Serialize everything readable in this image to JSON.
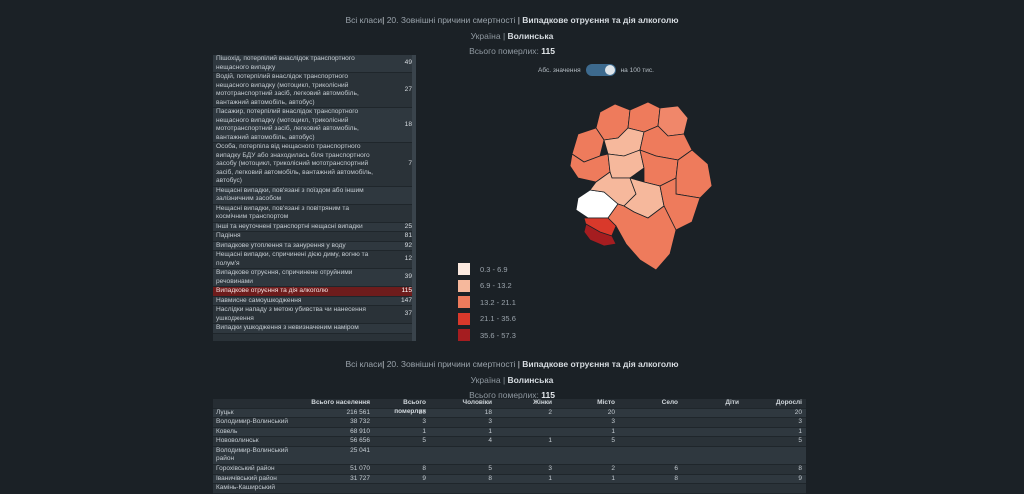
{
  "header": {
    "crumb_all": "Всі класи",
    "crumb_group": "20. Зовнішні причини смертності",
    "crumb_current": "Випадкове отруєння та дія алкоголю",
    "region_parent": "Україна",
    "region_current": "Волинська",
    "total_label": "Всього померлих:",
    "total_value": "115"
  },
  "toggle": {
    "left_label": "Абс. значення",
    "right_label": "на 100 тис.",
    "state": "on"
  },
  "causes": [
    {
      "label": "Пішохід, потерпілий внаслідок транспортного нещасного випадку",
      "value": "49"
    },
    {
      "label": "Водій, потерпілий внаслідок транспортного нещасного випадку (мотоцикл, триколісний мототранспортний засіб, легковий автомобіль, вантажний автомобіль, автобус)",
      "value": "27"
    },
    {
      "label": "Пасажир, потерпілий внаслідок транспортного нещасного випадку (мотоцикл, триколісний мототранспортний засіб, легковий автомобіль, вантажний автомобіль, автобус)",
      "value": "18"
    },
    {
      "label": "Особа, потерпіла від нещасного транспортного випадку БДУ або знаходилась біля транспортного засобу (мотоцикл, триколісний мототранспортний засіб, легковий автомобіль, вантажний автомобіль, автобус)",
      "value": "7"
    },
    {
      "label": "Нещасні випадки, пов'язані з поїздом або іншим залізничним засобом",
      "value": ""
    },
    {
      "label": "Нещасні випадки, пов'язані з повітряним та космічним транспортом",
      "value": ""
    },
    {
      "label": "Інші та неуточнені транспортні нещасні випадки",
      "value": "25"
    },
    {
      "label": "Падіння",
      "value": "81"
    },
    {
      "label": "Випадкове утоплення та занурення у воду",
      "value": "92"
    },
    {
      "label": "Нещасні випадки, спричинені дією диму, вогню та полум'я",
      "value": "12"
    },
    {
      "label": "Випадкове отруєння, спричинене отруйними речовинами",
      "value": "39"
    },
    {
      "label": "Випадкове отруєння та дія алкоголю",
      "value": "115",
      "selected": true
    },
    {
      "label": "Навмисне самоушкодження",
      "value": "147"
    },
    {
      "label": "Наслідки нападу з метою убивства чи нанесення ушкодження",
      "value": "37"
    },
    {
      "label": "Випадки ушкодження з невизначеним наміром",
      "value": ""
    }
  ],
  "legend": [
    {
      "label": "0.3 - 6.9",
      "color": "#fbe9df"
    },
    {
      "label": "6.9 - 13.2",
      "color": "#f6b89c"
    },
    {
      "label": "13.2 - 21.1",
      "color": "#ee7b5c"
    },
    {
      "label": "21.1 - 35.6",
      "color": "#d9392b"
    },
    {
      "label": "35.6 - 57.3",
      "color": "#a51d20"
    }
  ],
  "bottom_header": {
    "crumb_all": "Всі класи",
    "crumb_group": "20. Зовнішні причини смертності",
    "crumb_current": "Випадкове отруєння та дія алкоголю",
    "region_parent": "Україна",
    "region_current": "Волинська",
    "total_label": "Всього померлих:",
    "total_value": "115"
  },
  "table": {
    "columns": [
      "",
      "Всього населення",
      "Всього померлих",
      "Чоловіки",
      "Жінки",
      "Місто",
      "Село",
      "Діти",
      "Дорослі"
    ],
    "rows": [
      [
        "Луцьк",
        "216 561",
        "20",
        "18",
        "2",
        "20",
        "",
        "",
        "20"
      ],
      [
        "Володимир-Волинський",
        "38 732",
        "3",
        "3",
        "",
        "3",
        "",
        "",
        "3"
      ],
      [
        "Ковель",
        "68 910",
        "1",
        "1",
        "",
        "1",
        "",
        "",
        "1"
      ],
      [
        "Нововолинськ",
        "56 656",
        "5",
        "4",
        "1",
        "5",
        "",
        "",
        "5"
      ],
      [
        "Володимир-Волинський район",
        "25 041",
        "",
        "",
        "",
        "",
        "",
        "",
        ""
      ],
      [
        "Горохівський район",
        "51 070",
        "8",
        "5",
        "3",
        "2",
        "6",
        "",
        "8"
      ],
      [
        "Іваничівський район",
        "31 727",
        "9",
        "8",
        "1",
        "1",
        "8",
        "",
        "9"
      ],
      [
        "Камінь-Каширський",
        "",
        "",
        "",
        "",
        "",
        "",
        "",
        ""
      ]
    ]
  }
}
